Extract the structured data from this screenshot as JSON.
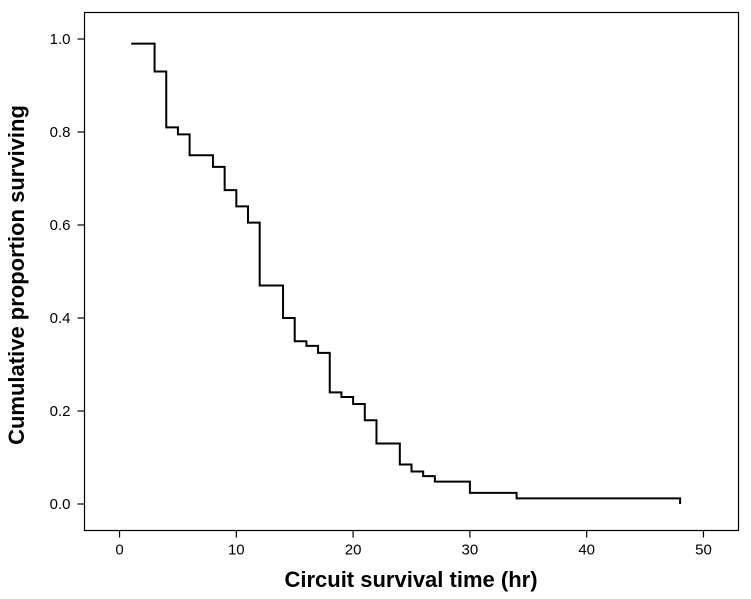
{
  "chart_data": {
    "type": "line",
    "title": "",
    "xlabel": "Circuit survival time (hr)",
    "ylabel": "Cumulative proportion surviving",
    "xlim": [
      -3,
      53
    ],
    "ylim": [
      -0.057,
      1.057
    ],
    "x_ticks": [
      0,
      10,
      20,
      30,
      40,
      50
    ],
    "x_tick_labels": [
      "0",
      "10",
      "20",
      "30",
      "40",
      "50"
    ],
    "y_ticks": [
      0.0,
      0.2,
      0.4,
      0.6,
      0.8,
      1.0
    ],
    "y_tick_labels": [
      "0.0",
      "0.2",
      "0.4",
      "0.6",
      "0.8",
      "1.0"
    ],
    "grid": false,
    "legend": "none",
    "line_color": "#000000",
    "series": [
      {
        "step": "post",
        "x": [
          1,
          3,
          4,
          5,
          6,
          8,
          9,
          10,
          11,
          12,
          14,
          15,
          16,
          17,
          18,
          19,
          20,
          21,
          22,
          24,
          25,
          26,
          27,
          30,
          34,
          48
        ],
        "y": [
          0.99,
          0.93,
          0.81,
          0.795,
          0.75,
          0.725,
          0.675,
          0.64,
          0.605,
          0.47,
          0.4,
          0.35,
          0.34,
          0.325,
          0.24,
          0.23,
          0.215,
          0.18,
          0.13,
          0.085,
          0.07,
          0.06,
          0.048,
          0.024,
          0.012,
          0.0
        ]
      }
    ]
  }
}
